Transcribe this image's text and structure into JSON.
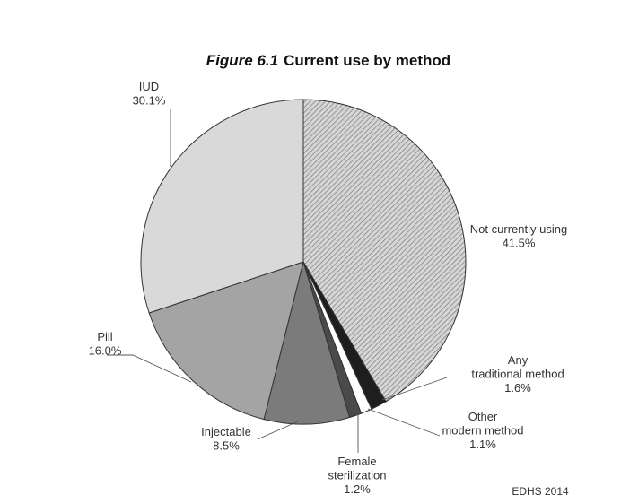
{
  "figure": {
    "title_prefix": "Figure 6.1",
    "title_text": "Current use by method",
    "source": "EDHS 2014"
  },
  "chart_data": {
    "type": "pie",
    "title": "Figure 6.1 Current use by method",
    "slices": [
      {
        "label_lines": [
          "Not currently using",
          "41.5%"
        ],
        "value": 41.5,
        "fill": "#c8c8c8",
        "pattern": "hatch"
      },
      {
        "label_lines": [
          "Any",
          "traditional method",
          "1.6%"
        ],
        "value": 1.6,
        "fill": "#1e1e1e"
      },
      {
        "label_lines": [
          "Other",
          "modern method",
          "1.1%"
        ],
        "value": 1.1,
        "fill": "#ffffff"
      },
      {
        "label_lines": [
          "Female",
          "sterilization",
          "1.2%"
        ],
        "value": 1.2,
        "fill": "#4a4a4a"
      },
      {
        "label_lines": [
          "Injectable",
          "8.5%"
        ],
        "value": 8.5,
        "fill": "#7b7b7b"
      },
      {
        "label_lines": [
          "Pill",
          "16.0%"
        ],
        "value": 16.0,
        "fill": "#a4a4a4"
      },
      {
        "label_lines": [
          "IUD",
          "30.1%"
        ],
        "value": 30.1,
        "fill": "#d9d9d9"
      }
    ]
  }
}
